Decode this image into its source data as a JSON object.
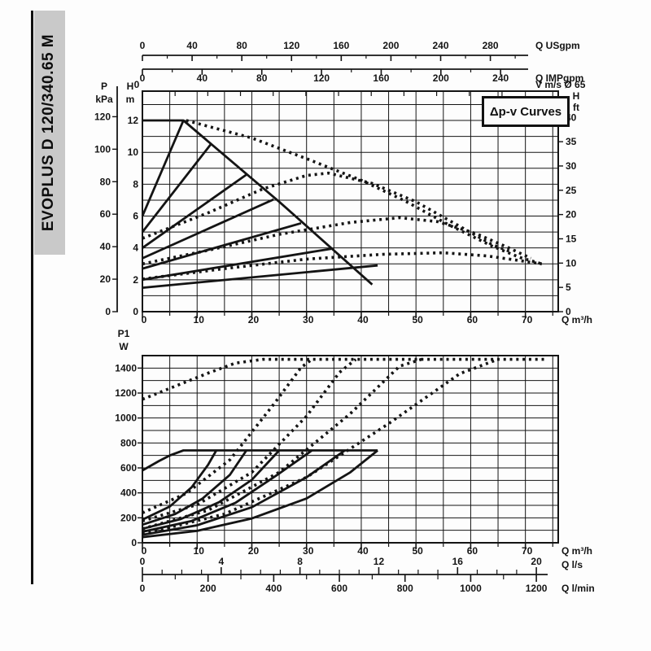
{
  "sidebar": {
    "model": "EVOPLUS D 120/340.65 M"
  },
  "legend_box": {
    "label": "Δp-v Curves"
  },
  "ink_color": "#141414",
  "strip_color": "#c9c9c9",
  "chart_data": [
    {
      "id": "head-chart",
      "type": "line",
      "title": "Δp-v Curves",
      "x_axis_m3h": {
        "label": "Q m³/h",
        "ticks": [
          0,
          10,
          20,
          30,
          40,
          50,
          60,
          70
        ],
        "minor_step": 5,
        "max": 76
      },
      "secondary_x_axes": [
        {
          "label": "Q USgpm",
          "ticks": [
            0,
            40,
            80,
            120,
            160,
            200,
            240,
            280
          ],
          "units_per_m3h": 4.4029,
          "minor_step": 20
        },
        {
          "label": "Q IMPgpm",
          "ticks": [
            0,
            40,
            80,
            120,
            160,
            200,
            240
          ],
          "units_per_m3h": 3.6661,
          "minor_step": 20
        },
        {
          "label": "V m/s Ø 65",
          "ticks": [
            0
          ],
          "units_per_m3h": 0.08368,
          "minor_step": 0.5
        }
      ],
      "y_axis_m": {
        "label_lines": [
          "H",
          "m"
        ],
        "ticks": [
          0,
          2,
          4,
          6,
          8,
          10,
          12
        ],
        "max": 13.8
      },
      "y_axis_kpa": {
        "label_lines": [
          "P",
          "kPa"
        ],
        "ticks": [
          0,
          20,
          40,
          60,
          80,
          100,
          120
        ],
        "m_per_unit": 0.10197
      },
      "y_axis_ft": {
        "label_lines": [
          "H",
          "ft"
        ],
        "ticks": [
          0,
          5,
          10,
          15,
          20,
          25,
          30,
          35,
          40
        ],
        "m_per_unit": 0.3048
      },
      "grid": {
        "x_step_m3h": 5,
        "y_step_m": 1
      },
      "series_solid": [
        {
          "name": "max-speed-envelope",
          "points": [
            [
              0,
              12
            ],
            [
              7.5,
              12
            ],
            [
              25,
              6.9
            ],
            [
              42,
              1.7
            ]
          ]
        },
        {
          "name": "dpv-line-1",
          "points": [
            [
              0,
              6
            ],
            [
              7.5,
              12
            ]
          ]
        },
        {
          "name": "dpv-line-2",
          "points": [
            [
              0,
              5
            ],
            [
              12.5,
              10.5
            ]
          ]
        },
        {
          "name": "dpv-line-3",
          "points": [
            [
              0,
              4
            ],
            [
              19,
              8.6
            ]
          ]
        },
        {
          "name": "dpv-line-4",
          "points": [
            [
              0,
              3.35
            ],
            [
              24,
              7.05
            ]
          ]
        },
        {
          "name": "dpv-line-5",
          "points": [
            [
              0,
              2.7
            ],
            [
              29,
              5.55
            ]
          ]
        },
        {
          "name": "dpv-line-6",
          "points": [
            [
              0,
              2
            ],
            [
              34.5,
              3.95
            ]
          ]
        },
        {
          "name": "dpv-line-7",
          "points": [
            [
              0,
              1.5
            ],
            [
              43,
              2.9
            ]
          ]
        }
      ],
      "series_dotted": [
        {
          "name": "parallel-max-curve",
          "points": [
            [
              8,
              12
            ],
            [
              20,
              10.9
            ],
            [
              30,
              9.6
            ],
            [
              40,
              8.25
            ],
            [
              48,
              6.95
            ],
            [
              56,
              5.45
            ],
            [
              64,
              4.1
            ],
            [
              69,
              3.4
            ],
            [
              73,
              3.0
            ]
          ]
        },
        {
          "name": "parallel-dpv-1",
          "points": [
            [
              0,
              4.6
            ],
            [
              12,
              6.2
            ],
            [
              22,
              7.7
            ],
            [
              30,
              8.55
            ],
            [
              34,
              8.7
            ],
            [
              42,
              8.05
            ],
            [
              50,
              6.9
            ],
            [
              58,
              5.35
            ],
            [
              64,
              4.2
            ],
            [
              67,
              3.8
            ]
          ]
        },
        {
          "name": "parallel-dpv-2",
          "points": [
            [
              0,
              3.0
            ],
            [
              12,
              3.85
            ],
            [
              25,
              4.85
            ],
            [
              38,
              5.6
            ],
            [
              47,
              5.9
            ],
            [
              54,
              5.65
            ],
            [
              61,
              4.9
            ],
            [
              67,
              4.0
            ],
            [
              71,
              3.35
            ]
          ]
        },
        {
          "name": "parallel-dpv-3",
          "points": [
            [
              0,
              2.05
            ],
            [
              15,
              2.7
            ],
            [
              30,
              3.3
            ],
            [
              44,
              3.6
            ],
            [
              55,
              3.7
            ],
            [
              63,
              3.5
            ],
            [
              69,
              3.2
            ],
            [
              73,
              3.0
            ]
          ]
        }
      ]
    },
    {
      "id": "power-chart",
      "type": "line",
      "x_axis_m3h": {
        "label": "Q m³/h",
        "ticks": [
          0,
          10,
          20,
          30,
          40,
          50,
          60,
          70
        ],
        "minor_step": 5,
        "max": 76
      },
      "secondary_x_axes": [
        {
          "label": "Q l/s",
          "ticks": [
            0,
            4,
            8,
            12,
            16,
            20
          ],
          "units_per_m3h": 0.27778,
          "minor_step": 1
        },
        {
          "label": "Q l/min",
          "ticks": [
            0,
            200,
            400,
            600,
            800,
            1000,
            1200
          ],
          "units_per_m3h": 16.667,
          "minor_step": 100
        }
      ],
      "y_axis_w": {
        "label_lines": [
          "P1",
          "W"
        ],
        "ticks": [
          0,
          200,
          400,
          600,
          800,
          1000,
          1200,
          1400
        ],
        "max": 1500
      },
      "grid": {
        "x_step_m3h": 5,
        "y_step_w": 100
      },
      "series_solid": [
        {
          "name": "power-max-single",
          "points": [
            [
              0,
              580
            ],
            [
              3,
              655
            ],
            [
              5,
              700
            ],
            [
              7.5,
              740
            ],
            [
              43,
              740
            ]
          ]
        },
        {
          "name": "power-dpv-1",
          "points": [
            [
              0,
              185
            ],
            [
              5,
              290
            ],
            [
              9,
              445
            ],
            [
              12,
              625
            ],
            [
              13.5,
              740
            ]
          ]
        },
        {
          "name": "power-dpv-2",
          "points": [
            [
              0,
              145
            ],
            [
              6,
              230
            ],
            [
              11,
              355
            ],
            [
              16,
              545
            ],
            [
              19,
              740
            ]
          ]
        },
        {
          "name": "power-dpv-3",
          "points": [
            [
              0,
              112
            ],
            [
              7,
              190
            ],
            [
              14,
              325
            ],
            [
              20,
              505
            ],
            [
              25,
              740
            ]
          ]
        },
        {
          "name": "power-dpv-4",
          "points": [
            [
              0,
              88
            ],
            [
              9,
              175
            ],
            [
              17,
              320
            ],
            [
              25,
              555
            ],
            [
              31,
              740
            ]
          ]
        },
        {
          "name": "power-dpv-5",
          "points": [
            [
              0,
              64
            ],
            [
              10,
              140
            ],
            [
              20,
              285
            ],
            [
              30,
              525
            ],
            [
              37,
              740
            ]
          ]
        },
        {
          "name": "power-dpv-6",
          "points": [
            [
              0,
              45
            ],
            [
              10,
              95
            ],
            [
              20,
              195
            ],
            [
              30,
              355
            ],
            [
              38,
              565
            ],
            [
              43,
              740
            ]
          ]
        }
      ],
      "series_dotted": [
        {
          "name": "power-max-parallel",
          "points": [
            [
              0,
              1150
            ],
            [
              6,
              1255
            ],
            [
              12,
              1360
            ],
            [
              17,
              1440
            ],
            [
              22,
              1470
            ],
            [
              74,
              1470
            ]
          ]
        },
        {
          "name": "power-parallel-dpv-1",
          "points": [
            [
              0,
              240
            ],
            [
              8,
              395
            ],
            [
              16,
              665
            ],
            [
              24,
              1110
            ],
            [
              29,
              1405
            ],
            [
              31,
              1470
            ]
          ]
        },
        {
          "name": "power-parallel-dpv-2",
          "points": [
            [
              0,
              175
            ],
            [
              10,
              305
            ],
            [
              20,
              565
            ],
            [
              30,
              1015
            ],
            [
              36,
              1365
            ],
            [
              39,
              1470
            ]
          ]
        },
        {
          "name": "power-parallel-dpv-3",
          "points": [
            [
              0,
              112
            ],
            [
              12,
              260
            ],
            [
              25,
              565
            ],
            [
              38,
              1035
            ],
            [
              47,
              1415
            ],
            [
              51,
              1470
            ]
          ]
        },
        {
          "name": "power-parallel-dpv-4",
          "points": [
            [
              0,
              70
            ],
            [
              15,
              230
            ],
            [
              30,
              525
            ],
            [
              45,
              955
            ],
            [
              58,
              1355
            ],
            [
              65,
              1470
            ]
          ]
        }
      ]
    }
  ]
}
